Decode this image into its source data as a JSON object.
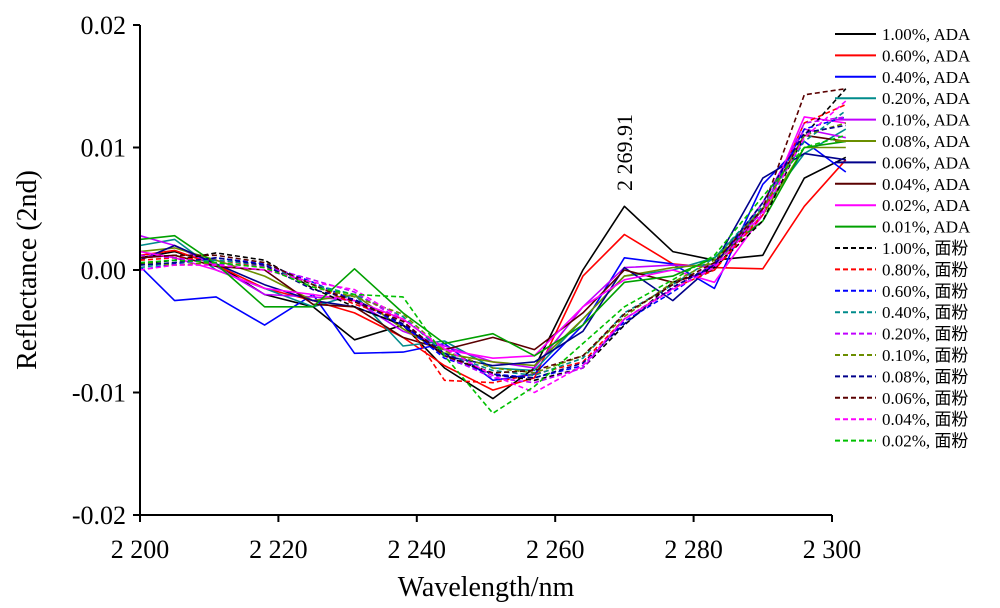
{
  "chart_data": {
    "type": "line",
    "title": "",
    "xlabel": "Wavelength/nm",
    "ylabel": "Reflectance (2nd)",
    "xlim": [
      2200,
      2300
    ],
    "ylim": [
      -0.02,
      0.02
    ],
    "x_ticks": [
      2200,
      2220,
      2240,
      2260,
      2280,
      2300
    ],
    "x_tick_labels": [
      "2 200",
      "2 220",
      "2 240",
      "2 260",
      "2 280",
      "2 300"
    ],
    "y_ticks": [
      0.02,
      0.01,
      0.0,
      -0.01,
      -0.02
    ],
    "y_tick_labels": [
      "0.02",
      "0.01",
      "0.00",
      "-0.01",
      "-0.02"
    ],
    "grid": false,
    "legend_position": "right",
    "annotation": {
      "text": "2 269.91",
      "x": 2269.91,
      "y": 0.0058
    },
    "x": [
      2200,
      2205,
      2211,
      2218,
      2225,
      2231,
      2238,
      2244,
      2251,
      2257,
      2264,
      2270,
      2277,
      2283,
      2290,
      2296,
      2302
    ],
    "series": [
      {
        "name": "1.00%, ADA",
        "color": "#000000",
        "dash": "solid",
        "values": [
          0.001,
          0.0015,
          0.0005,
          -0.002,
          -0.003,
          -0.0057,
          -0.0045,
          -0.008,
          -0.0105,
          -0.008,
          0.0,
          0.0052,
          0.0015,
          0.0008,
          0.0012,
          0.0075,
          0.0092
        ]
      },
      {
        "name": "0.60%, ADA",
        "color": "#ff0000",
        "dash": "solid",
        "values": [
          0.0012,
          0.0016,
          0.0004,
          -0.0015,
          -0.0025,
          -0.0035,
          -0.0055,
          -0.0078,
          -0.0098,
          -0.0088,
          -0.0005,
          0.0029,
          0.0005,
          0.0002,
          0.0001,
          0.0052,
          0.009
        ]
      },
      {
        "name": "0.40%, ADA",
        "color": "#0000ff",
        "dash": "solid",
        "values": [
          0.0003,
          -0.0025,
          -0.0022,
          -0.0045,
          -0.002,
          -0.0068,
          -0.0067,
          -0.006,
          -0.009,
          -0.0085,
          -0.0045,
          0.001,
          0.0005,
          -0.0015,
          0.007,
          0.0105,
          0.008
        ]
      },
      {
        "name": "0.20%, ADA",
        "color": "#008b8b",
        "dash": "solid",
        "values": [
          0.002,
          0.0025,
          0.0,
          -0.0015,
          -0.003,
          -0.002,
          -0.0062,
          -0.0058,
          -0.008,
          -0.0082,
          -0.004,
          -0.0005,
          0.0,
          0.001,
          0.005,
          0.0095,
          0.0115
        ]
      },
      {
        "name": "0.10%, ADA",
        "color": "#c000ff",
        "dash": "solid",
        "values": [
          0.0028,
          0.002,
          0.0003,
          -0.002,
          -0.0022,
          -0.0025,
          -0.005,
          -0.0062,
          -0.0075,
          -0.008,
          -0.003,
          0.0002,
          0.0004,
          0.0003,
          0.0055,
          0.0115,
          0.0108
        ]
      },
      {
        "name": "0.08%, ADA",
        "color": "#6b8e00",
        "dash": "solid",
        "values": [
          0.0015,
          0.0018,
          0.0008,
          -0.0005,
          -0.0025,
          -0.002,
          -0.0048,
          -0.0068,
          -0.0075,
          -0.0078,
          -0.004,
          -0.0005,
          0.0002,
          0.0005,
          0.0045,
          0.01,
          0.01
        ]
      },
      {
        "name": "0.06%, ADA",
        "color": "#00008b",
        "dash": "solid",
        "values": [
          0.0008,
          0.002,
          0.0005,
          -0.0012,
          -0.0025,
          -0.003,
          -0.0045,
          -0.007,
          -0.0078,
          -0.0075,
          -0.005,
          0.0002,
          -0.0025,
          0.0005,
          0.0075,
          0.0095,
          0.009
        ]
      },
      {
        "name": "0.04%, ADA",
        "color": "#5a0000",
        "dash": "solid",
        "values": [
          0.001,
          0.0012,
          0.0003,
          0.0,
          -0.0028,
          -0.003,
          -0.0055,
          -0.0065,
          -0.0055,
          -0.0065,
          -0.0035,
          0.0,
          -0.001,
          0.0,
          0.005,
          0.011,
          0.0105
        ]
      },
      {
        "name": "0.02%, ADA",
        "color": "#ff00ff",
        "dash": "solid",
        "values": [
          0.0015,
          0.001,
          0.0,
          -0.0015,
          -0.002,
          -0.0025,
          -0.004,
          -0.0065,
          -0.0072,
          -0.007,
          -0.003,
          -0.0008,
          0.0,
          -0.001,
          0.0045,
          0.0125,
          0.012
        ]
      },
      {
        "name": "0.01%, ADA",
        "color": "#00a000",
        "dash": "solid",
        "values": [
          0.0025,
          0.0028,
          0.0005,
          -0.003,
          -0.003,
          0.0001,
          -0.0035,
          -0.006,
          -0.0052,
          -0.007,
          -0.0045,
          -0.001,
          -0.0005,
          0.001,
          0.004,
          0.01,
          0.0105
        ]
      },
      {
        "name": "1.00%, 面粉",
        "color": "#000000",
        "dash": "dashed",
        "values": [
          0.0005,
          0.0008,
          0.0014,
          0.0008,
          -0.0015,
          -0.003,
          -0.0045,
          -0.007,
          -0.0085,
          -0.009,
          -0.008,
          -0.0045,
          -0.001,
          0.0002,
          0.004,
          0.011,
          0.0148
        ]
      },
      {
        "name": "0.80%, 面粉",
        "color": "#ff0000",
        "dash": "dashed",
        "values": [
          0.0008,
          0.001,
          0.0008,
          0.0003,
          -0.0012,
          -0.0028,
          -0.004,
          -0.009,
          -0.0092,
          -0.0085,
          -0.0075,
          -0.004,
          -0.0015,
          0.0,
          0.0045,
          0.012,
          0.0135
        ]
      },
      {
        "name": "0.60%, 面粉",
        "color": "#0000ff",
        "dash": "dashed",
        "values": [
          0.0,
          0.0005,
          0.001,
          0.0005,
          -0.001,
          -0.0025,
          -0.0045,
          -0.0072,
          -0.0085,
          -0.0088,
          -0.0078,
          -0.0042,
          -0.0018,
          0.0005,
          0.005,
          0.0115,
          0.0125
        ]
      },
      {
        "name": "0.40%, 面粉",
        "color": "#008b8b",
        "dash": "dashed",
        "values": [
          0.0002,
          0.0006,
          0.0008,
          0.0004,
          -0.0012,
          -0.002,
          -0.0038,
          -0.0068,
          -0.0082,
          -0.0086,
          -0.0072,
          -0.0035,
          -0.0012,
          0.001,
          0.0052,
          0.0105,
          0.013
        ]
      },
      {
        "name": "0.20%, 面粉",
        "color": "#c000ff",
        "dash": "dashed",
        "values": [
          0.0012,
          0.001,
          0.0005,
          0.0003,
          -0.0008,
          -0.0018,
          -0.0042,
          -0.007,
          -0.0088,
          -0.0092,
          -0.008,
          -0.004,
          -0.0015,
          0.0005,
          0.0048,
          0.012,
          0.0125
        ]
      },
      {
        "name": "0.10%, 面粉",
        "color": "#6b8e00",
        "dash": "dashed",
        "values": [
          0.0006,
          0.0004,
          0.0006,
          0.0002,
          -0.0014,
          -0.0022,
          -0.0036,
          -0.0066,
          -0.008,
          -0.0084,
          -0.007,
          -0.0038,
          -0.001,
          0.0008,
          0.005,
          0.011,
          0.012
        ]
      },
      {
        "name": "0.08%, 面粉",
        "color": "#00008b",
        "dash": "dashed",
        "values": [
          0.0004,
          0.0006,
          0.001,
          0.0004,
          -0.0016,
          -0.0024,
          -0.0044,
          -0.0068,
          -0.0086,
          -0.0088,
          -0.0076,
          -0.0044,
          -0.0014,
          0.0004,
          0.0055,
          0.0112,
          0.0118
        ]
      },
      {
        "name": "0.06%, 面粉",
        "color": "#5a0000",
        "dash": "dashed",
        "values": [
          0.001,
          0.0012,
          0.0012,
          0.0006,
          -0.0012,
          -0.0026,
          -0.0042,
          -0.007,
          -0.0084,
          -0.0082,
          -0.007,
          -0.0036,
          -0.0012,
          0.0006,
          0.005,
          0.0143,
          0.0148
        ]
      },
      {
        "name": "0.04%, 面粉",
        "color": "#ff00ff",
        "dash": "dashed",
        "values": [
          0.0,
          0.0004,
          0.0004,
          0.0,
          -0.001,
          -0.0016,
          -0.004,
          -0.0064,
          -0.0086,
          -0.01,
          -0.0078,
          -0.004,
          -0.0016,
          0.0002,
          0.0046,
          0.0108,
          0.0138
        ]
      },
      {
        "name": "0.02%, 面粉",
        "color": "#00c000",
        "dash": "dashed",
        "values": [
          0.0006,
          0.0008,
          0.0006,
          0.0002,
          -0.0014,
          -0.002,
          -0.0022,
          -0.007,
          -0.0117,
          -0.0095,
          -0.006,
          -0.003,
          -0.0008,
          0.0012,
          0.006,
          0.01,
          0.011
        ]
      }
    ]
  }
}
